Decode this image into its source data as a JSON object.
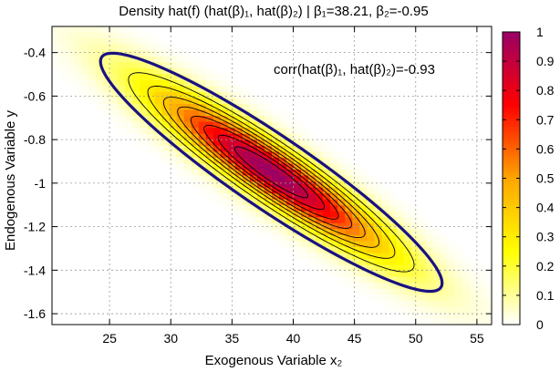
{
  "chart_data": {
    "type": "heatmap",
    "title": "Density hat(f) (hat(β)₁, hat(β)₂) | β₁=38.21, β₂=-0.95",
    "xlabel": "Exogenous Variable x₂",
    "ylabel": "Endogenous Variable y",
    "xlim": [
      20.3,
      56.2
    ],
    "ylim": [
      -1.65,
      -0.28
    ],
    "x_ticks": [
      "25",
      "30",
      "35",
      "40",
      "45",
      "50",
      "55"
    ],
    "x_tick_values": [
      25,
      30,
      35,
      40,
      45,
      50,
      55
    ],
    "y_ticks": [
      "-0.4",
      "-0.6",
      "-0.8",
      "-1",
      "-1.2",
      "-1.4",
      "-1.6"
    ],
    "y_tick_values": [
      -0.4,
      -0.6,
      -0.8,
      -1.0,
      -1.2,
      -1.4,
      -1.6
    ],
    "grid": true,
    "annotation": "corr(hat(β)₁, hat(β)₂)=-0.93",
    "density": {
      "center": [
        38.21,
        -0.95
      ],
      "sd": [
        6.5,
        0.255
      ],
      "corr": -0.93
    },
    "contour_levels": [
      0.1,
      0.2,
      0.3,
      0.4,
      0.5,
      0.6,
      0.7,
      0.8,
      0.9
    ],
    "highlight_contour_level": 0.1,
    "colorbar": {
      "range": [
        0,
        1
      ],
      "ticks": [
        "0",
        "0.1",
        "0.2",
        "0.3",
        "0.4",
        "0.5",
        "0.6",
        "0.7",
        "0.8",
        "0.9",
        "1"
      ],
      "tick_values": [
        0,
        0.1,
        0.2,
        0.3,
        0.4,
        0.5,
        0.6,
        0.7,
        0.8,
        0.9,
        1
      ],
      "colors": [
        "#ffffff",
        "#ffff00",
        "#ffa500",
        "#ff0000",
        "#990066"
      ]
    },
    "highlight_color": "#1a1280"
  }
}
